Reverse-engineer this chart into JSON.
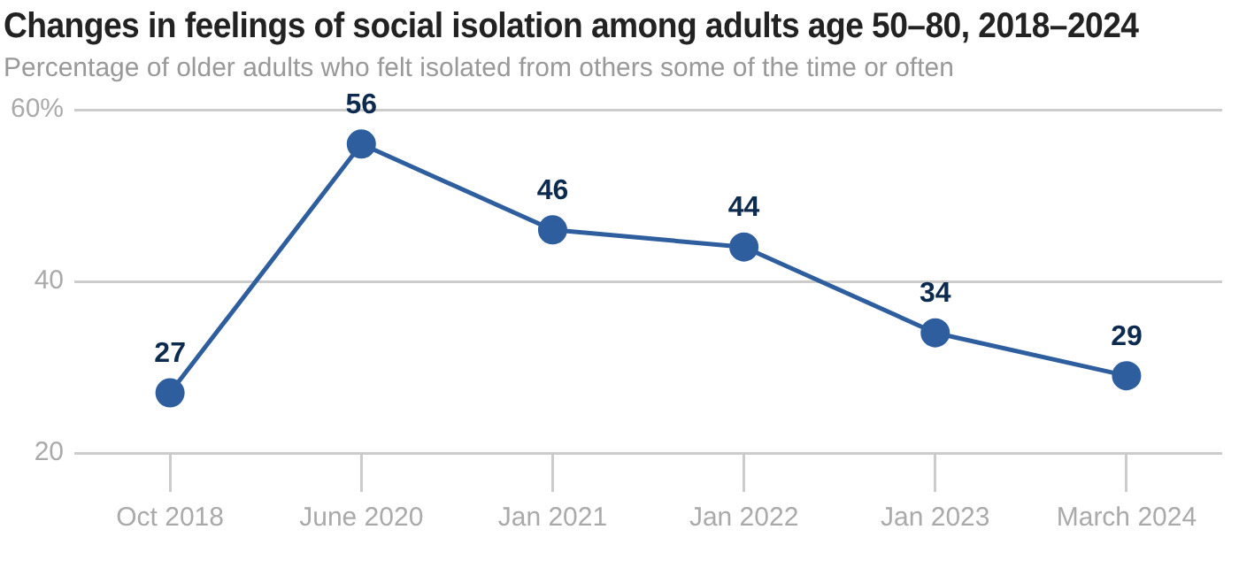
{
  "chart_data": {
    "type": "line",
    "title": "Changes in feelings of social isolation among adults age 50–80, 2018–2024",
    "subtitle": "Percentage of older adults who felt isolated from others some of the time or often",
    "categories": [
      "Oct 2018",
      "June 2020",
      "Jan 2021",
      "Jan 2022",
      "Jan 2023",
      "March 2024"
    ],
    "series": [
      {
        "color": "#2f5e9e",
        "values": [
          27,
          56,
          46,
          44,
          34,
          29
        ]
      }
    ],
    "ylim": [
      20,
      60
    ],
    "yticks": [
      20,
      40,
      {
        "value": 60,
        "label": "60%"
      }
    ],
    "grid": "y",
    "marker": "circle",
    "line_style": "solid",
    "data_labels": true,
    "legend": false
  }
}
